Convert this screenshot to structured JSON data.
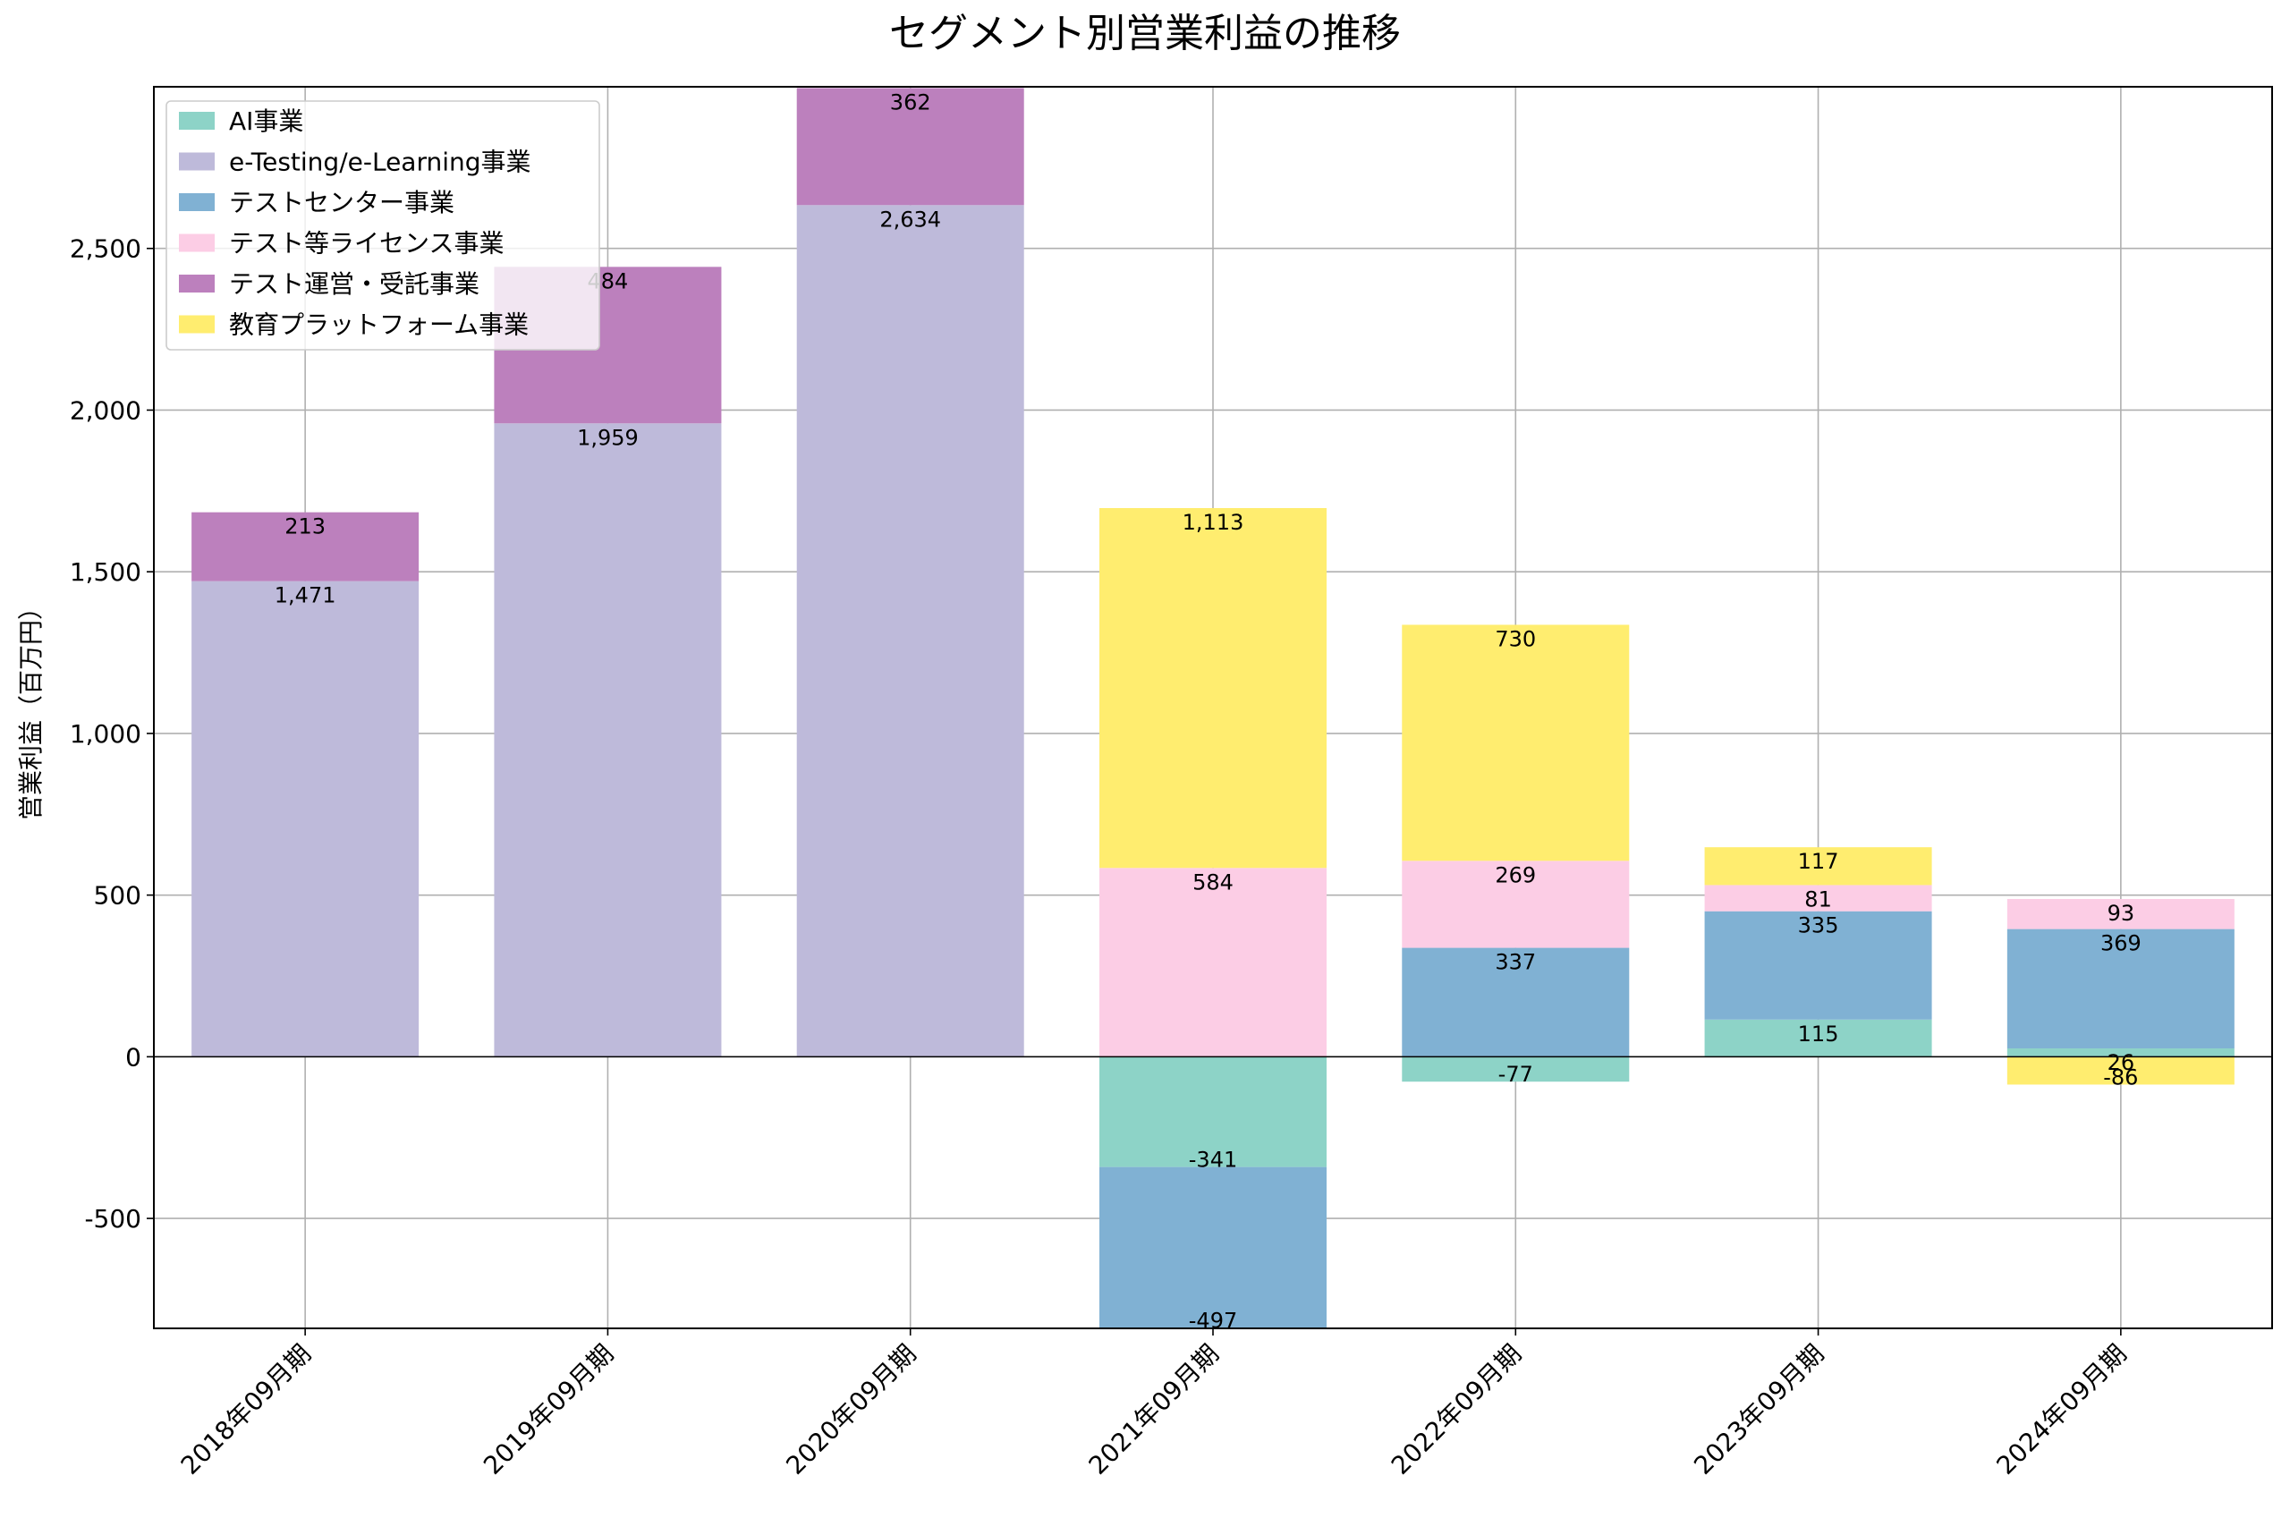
{
  "chart_data": {
    "type": "bar",
    "stacked": true,
    "title": "セグメント別営業利益の推移",
    "xlabel": "",
    "ylabel": "営業利益（百万円）",
    "ylim": [
      -840,
      3000
    ],
    "yticks": [
      -500,
      0,
      500,
      1000,
      1500,
      2000,
      2500
    ],
    "ytick_labels": [
      "-500",
      "0",
      "500",
      "1,000",
      "1,500",
      "2,000",
      "2,500"
    ],
    "grid": true,
    "legend_position": "top-left",
    "categories": [
      "2018年09月期",
      "2019年09月期",
      "2020年09月期",
      "2021年09月期",
      "2022年09月期",
      "2023年09月期",
      "2024年09月期"
    ],
    "series": [
      {
        "name": "AI事業",
        "color": "#8DD3C7",
        "values": [
          null,
          null,
          null,
          -341,
          -77,
          115,
          26
        ],
        "labels": [
          "",
          "",
          "",
          "-341",
          "-77",
          "115",
          "26"
        ]
      },
      {
        "name": "e-Testing/e-Learning事業",
        "color": "#BEBADA",
        "values": [
          1471,
          1959,
          2634,
          null,
          null,
          null,
          null
        ],
        "labels": [
          "1,471",
          "1,959",
          "2,634",
          "",
          "",
          "",
          ""
        ]
      },
      {
        "name": "テストセンター事業",
        "color": "#80B1D3",
        "values": [
          null,
          null,
          null,
          -497,
          337,
          335,
          369
        ],
        "labels": [
          "",
          "",
          "",
          "-497",
          "337",
          "335",
          "369"
        ]
      },
      {
        "name": "テスト等ライセンス事業",
        "color": "#FCCDE5",
        "values": [
          null,
          null,
          null,
          584,
          269,
          81,
          93
        ],
        "labels": [
          "",
          "",
          "",
          "584",
          "269",
          "81",
          "93"
        ]
      },
      {
        "name": "テスト運営・受託事業",
        "color": "#BC80BD",
        "values": [
          213,
          484,
          362,
          null,
          null,
          null,
          null
        ],
        "labels": [
          "213",
          "484",
          "362",
          "",
          "",
          "",
          ""
        ]
      },
      {
        "name": "教育プラットフォーム事業",
        "color": "#FFED6F",
        "values": [
          null,
          null,
          null,
          1113,
          730,
          117,
          -86
        ],
        "labels": [
          "",
          "",
          "",
          "1,113",
          "730",
          "117",
          "-86"
        ]
      }
    ]
  }
}
